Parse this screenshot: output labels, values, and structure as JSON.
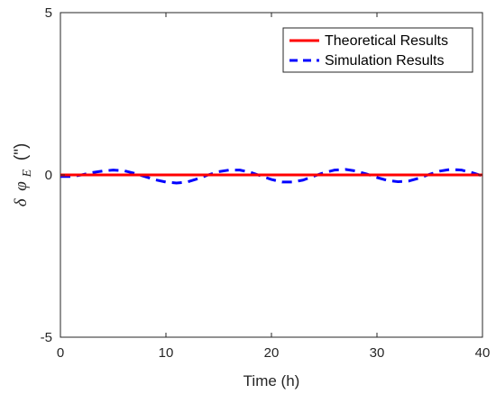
{
  "chart_data": {
    "type": "line",
    "xlabel": "Time (h)",
    "ylabel": {
      "delta": "δ",
      "phi": "φ",
      "subscript": "E",
      "unit": "(\")"
    },
    "xlim": [
      0,
      40
    ],
    "ylim": [
      -5,
      5
    ],
    "xticks": [
      0,
      10,
      20,
      30,
      40
    ],
    "yticks": [
      -5,
      0,
      5
    ],
    "grid": false,
    "legend_position": "top-right",
    "series": [
      {
        "name": "Theoretical Results",
        "color": "#ff0000",
        "style": "solid",
        "x": [
          0,
          40
        ],
        "y": [
          0,
          0
        ]
      },
      {
        "name": "Simulation Results",
        "color": "#0000ff",
        "style": "dashed",
        "x": [
          0,
          1,
          2,
          3,
          4,
          5,
          6,
          7,
          8,
          9,
          10,
          11,
          12,
          13,
          14,
          15,
          16,
          17,
          18,
          19,
          20,
          21,
          22,
          23,
          24,
          25,
          26,
          27,
          28,
          29,
          30,
          31,
          32,
          33,
          34,
          35,
          36,
          37,
          38,
          39,
          40
        ],
        "y": [
          -0.05,
          -0.05,
          0.0,
          0.07,
          0.12,
          0.15,
          0.13,
          0.05,
          -0.05,
          -0.15,
          -0.22,
          -0.25,
          -0.22,
          -0.12,
          0.0,
          0.1,
          0.15,
          0.15,
          0.08,
          -0.03,
          -0.14,
          -0.22,
          -0.22,
          -0.16,
          -0.04,
          0.07,
          0.15,
          0.17,
          0.12,
          0.03,
          -0.08,
          -0.17,
          -0.21,
          -0.19,
          -0.1,
          0.02,
          0.12,
          0.17,
          0.15,
          0.07,
          -0.03
        ]
      }
    ]
  }
}
